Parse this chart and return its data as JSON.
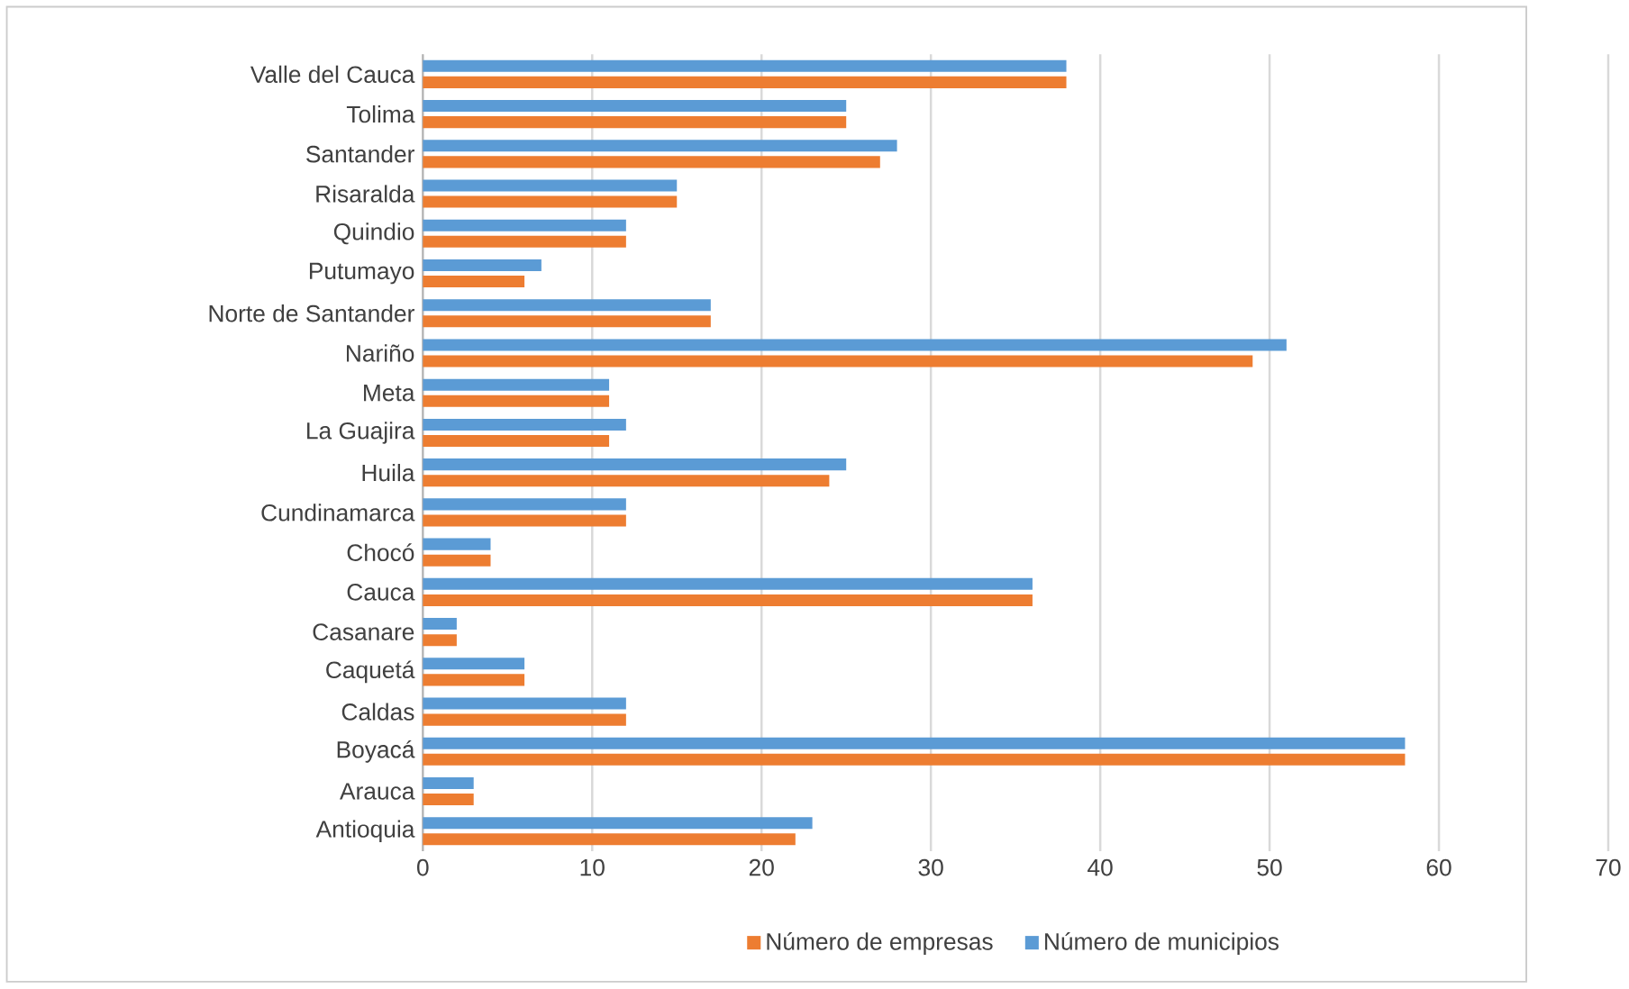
{
  "chart_data": {
    "type": "bar",
    "orientation": "horizontal",
    "categories": [
      "Valle del Cauca",
      "Tolima",
      "Santander",
      "Risaralda",
      "Quindio",
      "Putumayo",
      "Norte de Santander",
      "Nariño",
      "Meta",
      "La Guajira",
      "Huila",
      "Cundinamarca",
      "Chocó",
      "Cauca",
      "Casanare",
      "Caquetá",
      "Caldas",
      "Boyacá",
      "Arauca",
      "Antioquia"
    ],
    "series": [
      {
        "name": "Número de empresas",
        "color": "#ed7d31",
        "values": [
          38,
          25,
          27,
          15,
          12,
          6,
          17,
          49,
          11,
          11,
          24,
          12,
          4,
          36,
          2,
          6,
          12,
          58,
          3,
          22
        ]
      },
      {
        "name": "Número de municipios",
        "color": "#5b9bd5",
        "values": [
          38,
          25,
          28,
          15,
          12,
          7,
          17,
          51,
          11,
          12,
          25,
          12,
          4,
          36,
          2,
          6,
          12,
          58,
          3,
          23
        ]
      }
    ],
    "xlim": [
      0,
      70
    ],
    "xticks": [
      0,
      10,
      20,
      30,
      40,
      50,
      60,
      70
    ],
    "grid": "x",
    "legend": "bottom"
  }
}
